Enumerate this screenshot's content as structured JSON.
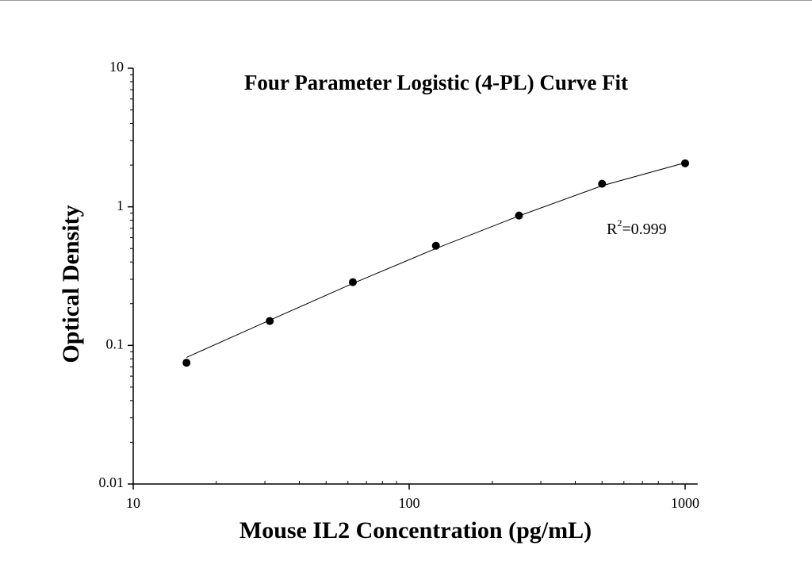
{
  "chart_data": {
    "type": "scatter",
    "title": "Four Parameter Logistic (4-PL) Curve Fit",
    "x_label": "Mouse IL2 Concentration (pg/mL)",
    "y_label": "Optical Density",
    "x_scale": "log",
    "y_scale": "log",
    "xlim": [
      10,
      1110
    ],
    "ylim": [
      0.01,
      10
    ],
    "xticks": [
      10,
      100,
      1000
    ],
    "yticks": [
      0.01,
      0.1,
      1,
      10
    ],
    "series": [
      {
        "color": "#000000",
        "x": [
          15.6,
          31.25,
          62.5,
          125,
          250,
          500,
          1000
        ],
        "values": [
          0.075,
          0.15,
          0.286,
          0.524,
          0.865,
          1.466,
          2.06
        ]
      }
    ],
    "curve": {
      "color": "#000000",
      "x": [
        15.6,
        31.25,
        62.5,
        125,
        250,
        500,
        1000
      ],
      "values": [
        0.082,
        0.152,
        0.28,
        0.5,
        0.86,
        1.42,
        2.08
      ]
    },
    "annotation": {
      "base": "R",
      "superscript": "2",
      "rest": "=0.999"
    }
  }
}
